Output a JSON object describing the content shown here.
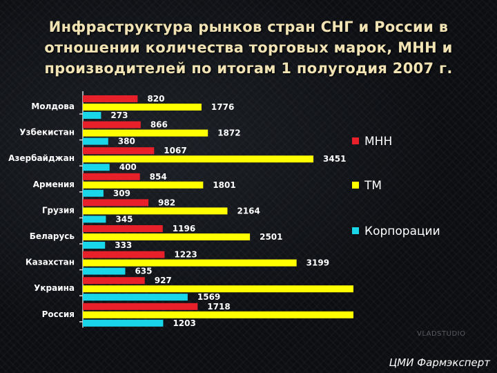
{
  "title": "Инфраструктура рынков стран СНГ и России в отношении количества торговых марок, МНН и производителей по итогам 1 полугодия 2007 г.",
  "credit": "ЦМИ Фармэксперт",
  "watermark": "VLADSTUDIO",
  "chart_data": {
    "type": "bar",
    "orientation": "horizontal",
    "categories": [
      "Молдова",
      "Узбекистан",
      "Азербайджан",
      "Армения",
      "Грузия",
      "Беларусь",
      "Казахстан",
      "Украина",
      "Россия"
    ],
    "series": [
      {
        "name": "МНН",
        "color": "#e8202a",
        "values": [
          820,
          866,
          1067,
          854,
          982,
          1196,
          1223,
          927,
          1718
        ]
      },
      {
        "name": "ТМ",
        "color": "#ffff00",
        "values": [
          1776,
          1872,
          3451,
          1801,
          2164,
          2501,
          3199,
          null,
          null
        ]
      },
      {
        "name": "Корпорации",
        "color": "#19d6e8",
        "values": [
          273,
          380,
          400,
          309,
          345,
          333,
          635,
          1569,
          1203
        ]
      }
    ],
    "legend_position": "right",
    "grid": false,
    "value_labels": true
  }
}
